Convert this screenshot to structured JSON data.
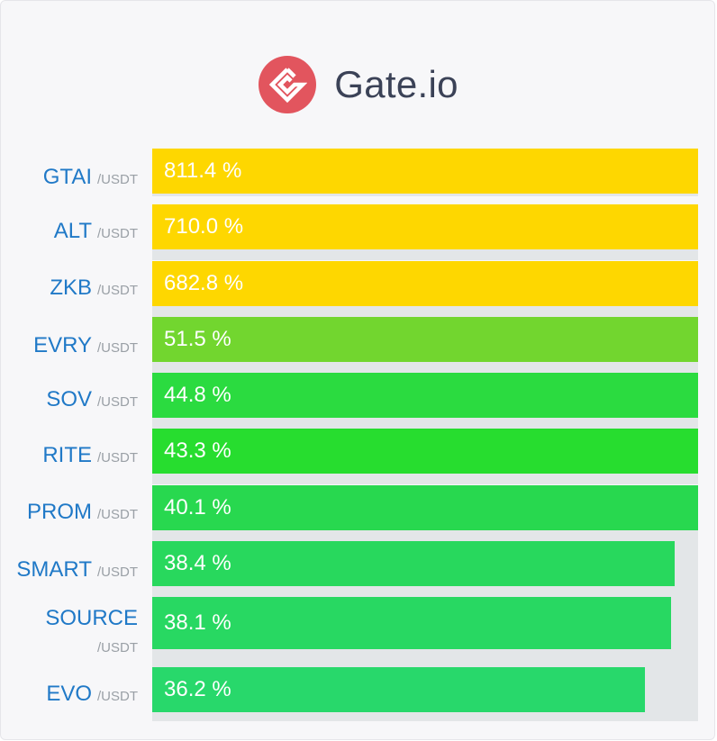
{
  "brand": {
    "name": "Gate.io",
    "logo_icon": "gate-io-logo-icon",
    "logo_color": "#e2555e"
  },
  "colors": {
    "track": "#e3e6e8",
    "symbol": "#2079c7",
    "quote": "#9aa0a6",
    "yellow": "#fed700",
    "lime": "#72d62f",
    "green": "#27dd2f",
    "mint": "#28d85d"
  },
  "chart_data": {
    "type": "bar",
    "orientation": "horizontal",
    "categories": [
      "GTAI",
      "ALT",
      "ZKB",
      "EVRY",
      "SOV",
      "RITE",
      "PROM",
      "SMART",
      "SOURCE",
      "EVO"
    ],
    "quote_suffix": "/USDT",
    "values": [
      811.4,
      710.0,
      682.8,
      51.5,
      44.8,
      43.3,
      40.1,
      38.4,
      38.1,
      36.2
    ],
    "value_labels": [
      "811.4 %",
      "710.0 %",
      "682.8 %",
      "51.5 %",
      "44.8 %",
      "43.3 %",
      "40.1 %",
      "38.4 %",
      "38.1 %",
      "36.2 %"
    ],
    "bar_colors": [
      "#fed700",
      "#fed700",
      "#fed700",
      "#72d62f",
      "#2bdb40",
      "#27dd2f",
      "#28d84f",
      "#28d85d",
      "#28d862",
      "#28d86b"
    ],
    "xlim": [
      0,
      40.1
    ],
    "unit": "%"
  }
}
